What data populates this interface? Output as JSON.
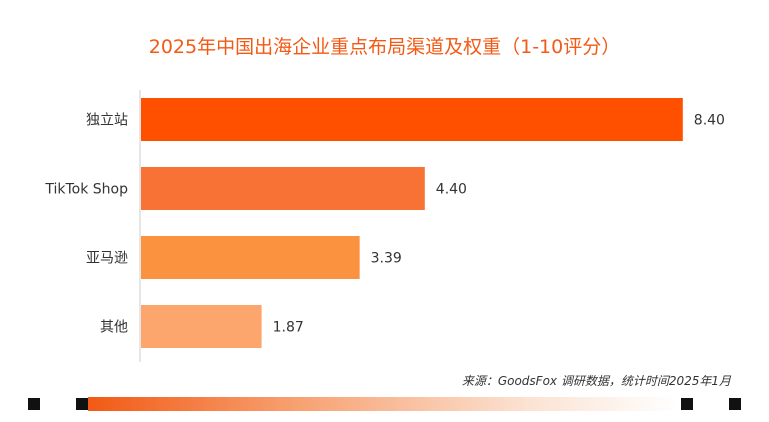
{
  "chart_data": {
    "type": "bar",
    "orientation": "horizontal",
    "title": "2025年中国出海企业重点布局渠道及权重（1-10评分）",
    "categories": [
      "独立站",
      "TikTok Shop",
      "亚马逊",
      "其他"
    ],
    "values": [
      8.4,
      4.4,
      3.39,
      1.87
    ],
    "value_labels": [
      "8.40",
      "4.40",
      "3.39",
      "1.87"
    ],
    "bar_colors": [
      "#FF5000",
      "#F87135",
      "#FA9240",
      "#FCA66E"
    ],
    "xlim": [
      0,
      10
    ],
    "grid": false
  },
  "source": "来源：GoodsFox 调研数据，统计时间2025年1月",
  "colors": {
    "title": "#F25A15",
    "axis": "#CCCCCC",
    "label": "#333333"
  }
}
